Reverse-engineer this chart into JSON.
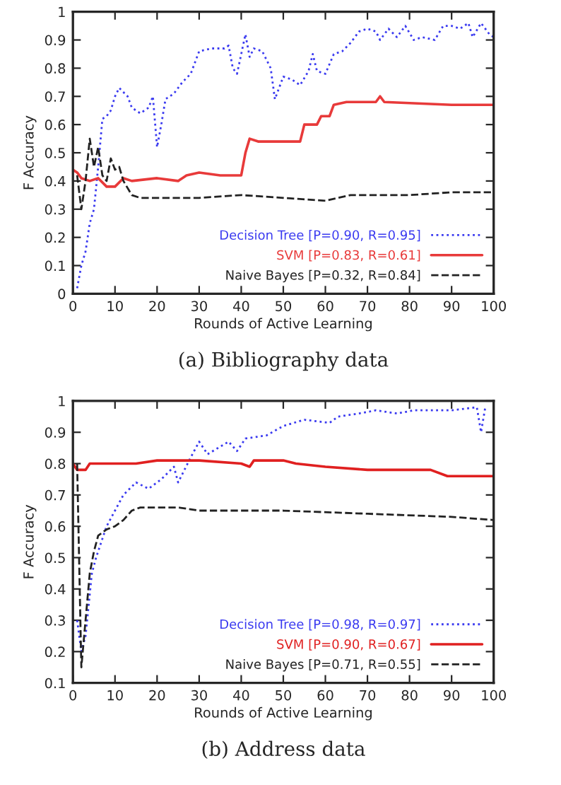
{
  "chart_data": [
    {
      "type": "line",
      "title": "(a) Bibliography data",
      "xlabel": "Rounds of Active Learning",
      "ylabel": "F Accuracy",
      "xlim": [
        0,
        100
      ],
      "ylim": [
        0,
        1
      ],
      "xticks": [
        0,
        10,
        20,
        30,
        40,
        50,
        60,
        70,
        80,
        90,
        100
      ],
      "yticks": [
        0,
        0.1,
        0.2,
        0.3,
        0.4,
        0.5,
        0.6,
        0.7,
        0.8,
        0.9,
        1
      ],
      "grid": false,
      "legend": "bottom right",
      "series": [
        {
          "name": "Decision Tree [P=0.90, R=0.95]",
          "color": "#3a3af0",
          "line_style": "dotted",
          "x": [
            1,
            2,
            3,
            4,
            5,
            6,
            7,
            8,
            9,
            10,
            11,
            13,
            14,
            16,
            18,
            19,
            20,
            21,
            22,
            24,
            26,
            28,
            30,
            33,
            36,
            37,
            38,
            39,
            40,
            41,
            42,
            43,
            45,
            47,
            48,
            50,
            52,
            54,
            56,
            57,
            58,
            60,
            62,
            64,
            66,
            68,
            70,
            72,
            73,
            75,
            77,
            79,
            81,
            83,
            86,
            88,
            90,
            92,
            94,
            95,
            97,
            99,
            100
          ],
          "values": [
            0.02,
            0.1,
            0.15,
            0.25,
            0.3,
            0.45,
            0.62,
            0.63,
            0.65,
            0.7,
            0.73,
            0.7,
            0.66,
            0.64,
            0.66,
            0.7,
            0.52,
            0.6,
            0.69,
            0.71,
            0.75,
            0.78,
            0.86,
            0.87,
            0.87,
            0.88,
            0.8,
            0.78,
            0.85,
            0.92,
            0.84,
            0.87,
            0.86,
            0.8,
            0.69,
            0.77,
            0.76,
            0.74,
            0.79,
            0.85,
            0.79,
            0.78,
            0.85,
            0.86,
            0.89,
            0.93,
            0.94,
            0.93,
            0.9,
            0.94,
            0.91,
            0.95,
            0.9,
            0.91,
            0.9,
            0.95,
            0.95,
            0.94,
            0.96,
            0.91,
            0.96,
            0.92,
            0.91
          ]
        },
        {
          "name": "SVM [P=0.83, R=0.61]",
          "color": "#e83a3a",
          "line_style": "solid",
          "x": [
            0,
            1,
            2,
            4,
            6,
            8,
            10,
            12,
            14,
            20,
            25,
            27,
            30,
            35,
            40,
            41,
            42,
            44,
            50,
            54,
            55,
            58,
            59,
            61,
            62,
            65,
            72,
            73,
            74,
            90,
            100
          ],
          "values": [
            0.44,
            0.43,
            0.41,
            0.4,
            0.41,
            0.38,
            0.38,
            0.41,
            0.4,
            0.41,
            0.4,
            0.42,
            0.43,
            0.42,
            0.42,
            0.5,
            0.55,
            0.54,
            0.54,
            0.54,
            0.6,
            0.6,
            0.63,
            0.63,
            0.67,
            0.68,
            0.68,
            0.7,
            0.68,
            0.67,
            0.67
          ]
        },
        {
          "name": "Naive Bayes [P=0.32, R=0.84]",
          "color": "#222222",
          "line_style": "dashed",
          "x": [
            1,
            2,
            3,
            4,
            5,
            6,
            7,
            8,
            9,
            10,
            11,
            12,
            14,
            16,
            20,
            30,
            40,
            50,
            60,
            66,
            80,
            90,
            100
          ],
          "values": [
            0.42,
            0.3,
            0.4,
            0.55,
            0.45,
            0.52,
            0.42,
            0.4,
            0.48,
            0.44,
            0.45,
            0.4,
            0.35,
            0.34,
            0.34,
            0.34,
            0.35,
            0.34,
            0.33,
            0.35,
            0.35,
            0.36,
            0.36
          ]
        }
      ]
    },
    {
      "type": "line",
      "title": "(b) Address data",
      "xlabel": "Rounds of Active Learning",
      "ylabel": "F Accuracy",
      "xlim": [
        0,
        100
      ],
      "ylim": [
        0.1,
        1
      ],
      "xticks": [
        0,
        10,
        20,
        30,
        40,
        50,
        60,
        70,
        80,
        90,
        100
      ],
      "yticks": [
        0.1,
        0.2,
        0.3,
        0.4,
        0.5,
        0.6,
        0.7,
        0.8,
        0.9,
        1
      ],
      "grid": false,
      "legend": "bottom right",
      "series": [
        {
          "name": "Decision Tree [P=0.98, R=0.97]",
          "color": "#3a3af0",
          "line_style": "dotted",
          "x": [
            1,
            2,
            3,
            4.5,
            5.5,
            8,
            10,
            12,
            15,
            18,
            21,
            24,
            25,
            28,
            30,
            32,
            37,
            39,
            41,
            46,
            50,
            55,
            61,
            63,
            68,
            72,
            77,
            81,
            90,
            96,
            97,
            98
          ],
          "values": [
            0.3,
            0.2,
            0.25,
            0.45,
            0.5,
            0.6,
            0.65,
            0.7,
            0.74,
            0.72,
            0.75,
            0.79,
            0.74,
            0.82,
            0.87,
            0.83,
            0.87,
            0.84,
            0.88,
            0.89,
            0.92,
            0.94,
            0.93,
            0.95,
            0.96,
            0.97,
            0.96,
            0.97,
            0.97,
            0.98,
            0.9,
            0.98
          ]
        },
        {
          "name": "SVM [P=0.90, R=0.67]",
          "color": "#e02020",
          "line_style": "solid",
          "x": [
            0,
            1,
            3,
            4,
            15,
            20,
            30,
            40,
            42,
            43,
            50,
            53,
            60,
            70,
            85,
            89,
            100
          ],
          "values": [
            0.8,
            0.78,
            0.78,
            0.8,
            0.8,
            0.81,
            0.81,
            0.8,
            0.79,
            0.81,
            0.81,
            0.8,
            0.79,
            0.78,
            0.78,
            0.76,
            0.76
          ]
        },
        {
          "name": "Naive Bayes [P=0.71, R=0.55]",
          "color": "#222222",
          "line_style": "dashed",
          "x": [
            1,
            2,
            3,
            4,
            5,
            6,
            8,
            10,
            12,
            14,
            16,
            25,
            30,
            50,
            70,
            90,
            100
          ],
          "values": [
            0.8,
            0.15,
            0.3,
            0.45,
            0.52,
            0.57,
            0.59,
            0.6,
            0.62,
            0.65,
            0.66,
            0.66,
            0.65,
            0.65,
            0.64,
            0.63,
            0.62
          ]
        }
      ]
    }
  ]
}
